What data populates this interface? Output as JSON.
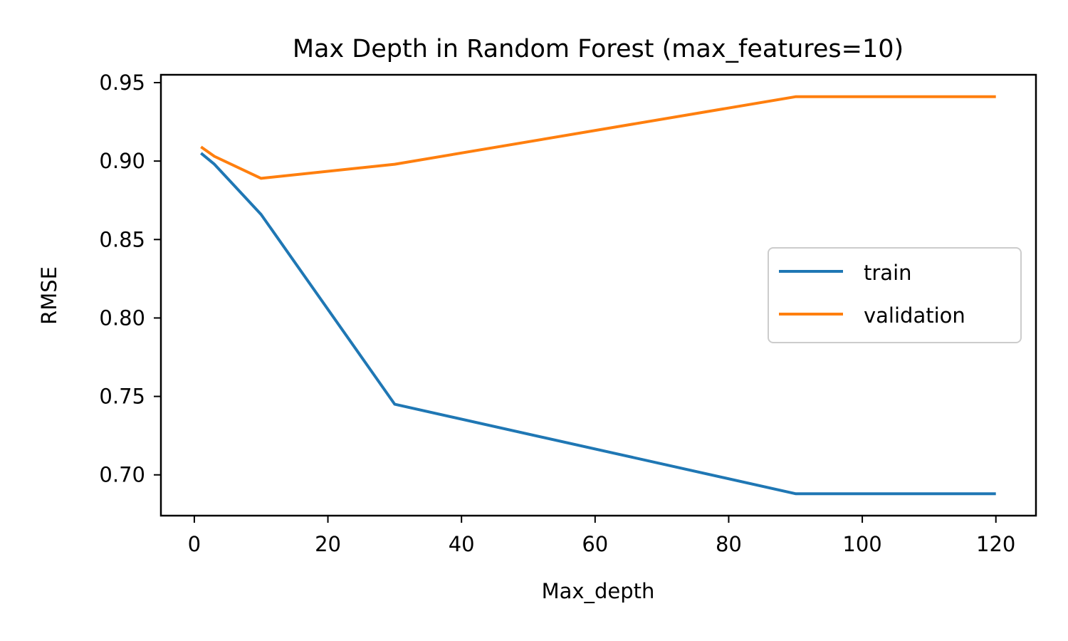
{
  "chart_data": {
    "type": "line",
    "title": "Max Depth in Random Forest (max_features=10)",
    "xlabel": "Max_depth",
    "ylabel": "RMSE",
    "xlim": [
      -5,
      126
    ],
    "ylim": [
      0.674,
      0.955
    ],
    "xticks": [
      "0",
      "20",
      "40",
      "60",
      "80",
      "100",
      "120"
    ],
    "yticks": [
      "0.70",
      "0.75",
      "0.80",
      "0.85",
      "0.90",
      "0.95"
    ],
    "grid": false,
    "legend_position": "center-right",
    "series": [
      {
        "name": "train",
        "color": "#1f77b4",
        "x": [
          1,
          3,
          10,
          30,
          90,
          120
        ],
        "y": [
          0.905,
          0.898,
          0.866,
          0.745,
          0.688,
          0.688
        ]
      },
      {
        "name": "validation",
        "color": "#ff7f0e",
        "x": [
          1,
          3,
          10,
          30,
          90,
          120
        ],
        "y": [
          0.909,
          0.903,
          0.889,
          0.898,
          0.941,
          0.941
        ]
      }
    ]
  }
}
